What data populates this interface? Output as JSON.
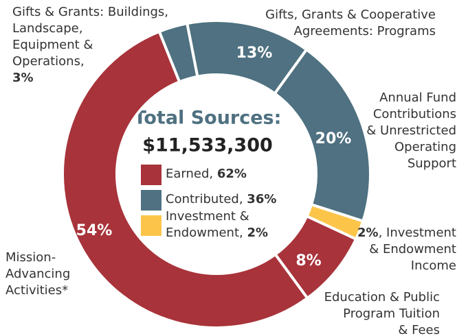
{
  "chart_data": {
    "type": "donut",
    "title": "Total Sources:",
    "subtitle": "$11,533,300",
    "categories": [
      [
        "Gifts, Grants & Cooperative",
        "Agreements: Programs"
      ],
      [
        "Annual Fund",
        "Contributions",
        "& Unrestricted",
        "Operating",
        "Support"
      ],
      [
        ", Investment",
        "& Endowment",
        "Income"
      ],
      [
        "Education & Public",
        "Program Tuition",
        "& Fees"
      ],
      [
        "Mission-",
        "Advancing",
        "Activities*"
      ],
      [
        "Gifts & Grants: Buildings,",
        "Landscape,",
        "Equipment &",
        "Operations,"
      ]
    ],
    "values": [
      13,
      20,
      2,
      8,
      54,
      3
    ],
    "value_labels": [
      "13%",
      "20%",
      "2%",
      "8%",
      "54%",
      "3%"
    ],
    "colors": [
      "#4f7181",
      "#4f7181",
      "#fcc54a",
      "#a8333a",
      "#a8333a",
      "#4f7181"
    ],
    "legend": [
      {
        "name": [
          "Earned,"
        ],
        "value_label": "62%",
        "color": "#a8333a"
      },
      {
        "name": [
          "Contributed,"
        ],
        "value_label": "36%",
        "color": "#4f7181"
      },
      {
        "name": [
          "Investment &",
          "Endowment,"
        ],
        "value_label": "2%",
        "color": "#fcc54a"
      }
    ]
  }
}
